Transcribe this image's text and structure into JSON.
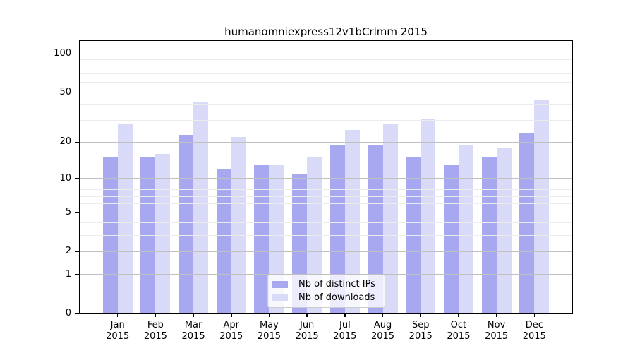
{
  "chart_data": {
    "type": "bar",
    "title": "humanomniexpress12v1bCrlmm 2015",
    "categories": [
      "Jan 2015",
      "Feb 2015",
      "Mar 2015",
      "Apr 2015",
      "May 2015",
      "Jun 2015",
      "Jul 2015",
      "Aug 2015",
      "Sep 2015",
      "Oct 2015",
      "Nov 2015",
      "Dec 2015"
    ],
    "series": [
      {
        "name": "Nb of distinct IPs",
        "color": "#a8a8f0",
        "values": [
          15,
          15,
          23,
          12,
          13,
          11,
          19,
          19,
          15,
          13,
          15,
          24
        ]
      },
      {
        "name": "Nb of downloads",
        "color": "#d9d9f8",
        "values": [
          28,
          16,
          42,
          22,
          13,
          15,
          25,
          28,
          31,
          19,
          18,
          43
        ]
      }
    ],
    "yscale": "log1p",
    "ylim": [
      0,
      126
    ],
    "yticks": [
      0,
      1,
      2,
      5,
      10,
      20,
      50,
      100
    ],
    "minor_yticks": [
      3,
      4,
      6,
      7,
      8,
      9,
      30,
      40,
      60,
      70,
      80,
      90
    ],
    "grid": true,
    "legend_position": "lower center",
    "colors": {
      "major_grid": "#c0c0c0",
      "minor_grid": "#ececec",
      "axis": "#000000",
      "background": "#ffffff"
    }
  }
}
